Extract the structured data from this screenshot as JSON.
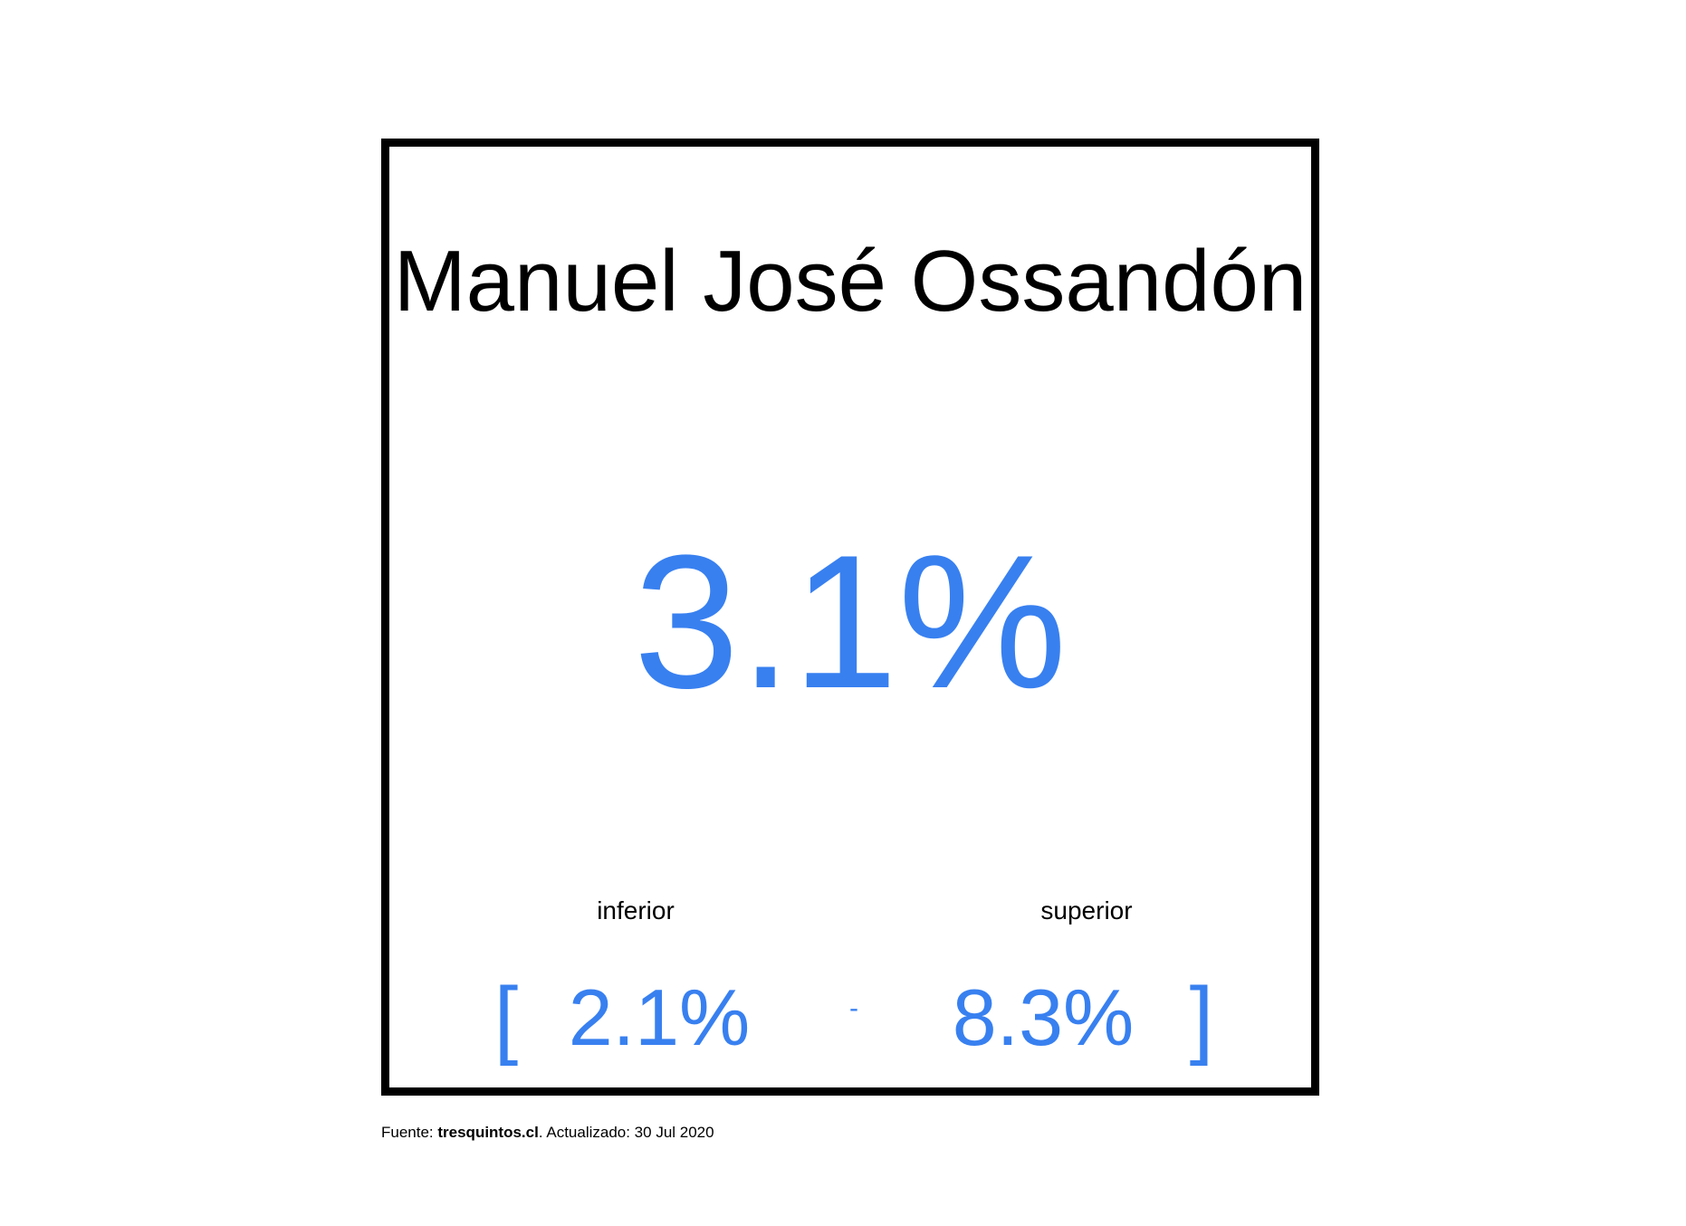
{
  "candidate": {
    "name": "Manuel José Ossandón",
    "value": "3.1%"
  },
  "range": {
    "lower_label": "inferior",
    "upper_label": "superior",
    "open_bracket": "[",
    "close_bracket": "]",
    "separator": "-",
    "lower_value": "2.1%",
    "upper_value": "8.3%"
  },
  "footer": {
    "prefix": "Fuente: ",
    "source": "tresquintos.cl",
    "suffix": ". Actualizado: 30 Jul 2020"
  },
  "colors": {
    "accent": "#3880f0",
    "text": "#000000",
    "border": "#000000"
  }
}
